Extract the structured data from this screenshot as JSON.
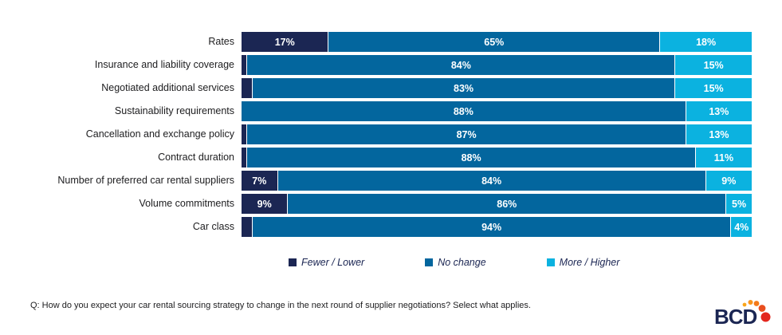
{
  "chart_data": {
    "type": "bar",
    "orientation": "horizontal_stacked",
    "title": "",
    "xlabel": "",
    "ylabel": "",
    "xlim": [
      0,
      100
    ],
    "grid": false,
    "legend_position": "bottom",
    "categories": [
      "Rates",
      "Insurance and liability coverage",
      "Negotiated additional services",
      "Sustainability requirements",
      "Cancellation and exchange policy",
      "Contract duration",
      "Number of preferred car rental suppliers",
      "Volume commitments",
      "Car class"
    ],
    "series": [
      {
        "name": "Fewer / Lower",
        "color": "#1b2653",
        "values": [
          17,
          1,
          2,
          0,
          1,
          1,
          7,
          9,
          2
        ],
        "labels": [
          "17%",
          "",
          "",
          "",
          "",
          "",
          "7%",
          "9%",
          ""
        ]
      },
      {
        "name": "No change",
        "color": "#03669e",
        "values": [
          65,
          84,
          83,
          88,
          87,
          88,
          84,
          86,
          94
        ],
        "labels": [
          "65%",
          "84%",
          "83%",
          "88%",
          "87%",
          "88%",
          "84%",
          "86%",
          "94%"
        ]
      },
      {
        "name": "More / Higher",
        "color": "#0bb2e0",
        "values": [
          18,
          15,
          15,
          13,
          13,
          11,
          9,
          5,
          4
        ],
        "labels": [
          "18%",
          "15%",
          "15%",
          "13%",
          "13%",
          "11%",
          "9%",
          "5%",
          "4%"
        ]
      }
    ]
  },
  "legend": {
    "items": [
      {
        "label": "Fewer / Lower",
        "color": "#1b2653"
      },
      {
        "label": "No change",
        "color": "#03669e"
      },
      {
        "label": "More / Higher",
        "color": "#0bb2e0"
      }
    ]
  },
  "footer": {
    "question": "Q: How do you expect your car rental sourcing strategy to change in the next round of supplier negotiations? Select what applies."
  },
  "logo": {
    "text": "BCD",
    "text_color": "#1b2653",
    "dot_colors": [
      "#f9a51b",
      "#f8941c",
      "#f47a1a",
      "#e94e1e",
      "#e3261d"
    ]
  }
}
